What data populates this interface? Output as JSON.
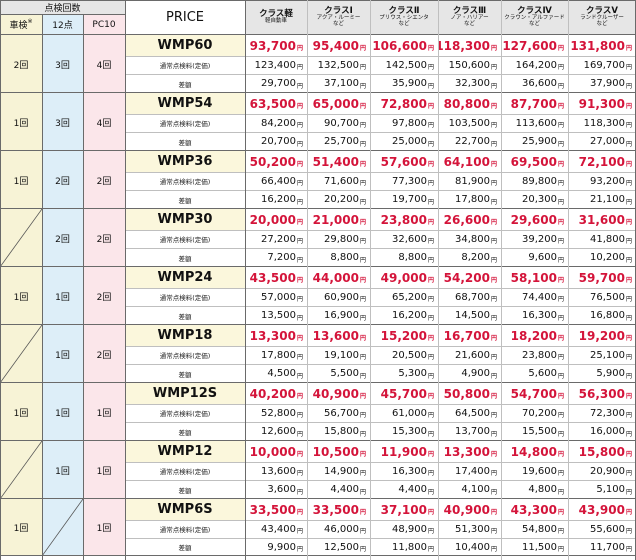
{
  "header": {
    "count_group": "点検回数",
    "col_shaken": "車検",
    "col_shaken_mark": "※",
    "col_12": "12点",
    "col_pc10": "PC10",
    "price": "PRICE",
    "classes": [
      {
        "name": "クラス軽",
        "sub1": "軽自動車",
        "sub2": ""
      },
      {
        "name": "クラスⅠ",
        "sub1": "アクア・ルーミー",
        "sub2": "など"
      },
      {
        "name": "クラスⅡ",
        "sub1": "プリウス・シエンタ",
        "sub2": "など"
      },
      {
        "name": "クラスⅢ",
        "sub1": "ノア・ハリアー",
        "sub2": "など"
      },
      {
        "name": "クラスⅣ",
        "sub1": "クラウン・アルファード",
        "sub2": "など"
      },
      {
        "name": "クラスⅤ",
        "sub1": "ランドクルーザー",
        "sub2": "など"
      }
    ]
  },
  "yen": "円",
  "row_labels": {
    "regular": "通常点検料(定価)",
    "diff": "差額"
  },
  "plans": [
    {
      "name": "WMP60",
      "shaken": "2回",
      "c12": "3回",
      "pc10": "4回",
      "price": [
        "93,700",
        "95,400",
        "106,600",
        "118,300",
        "127,600",
        "131,800"
      ],
      "regular": [
        "123,400",
        "132,500",
        "142,500",
        "150,600",
        "164,200",
        "169,700"
      ],
      "diff": [
        "29,700",
        "37,100",
        "35,900",
        "32,300",
        "36,600",
        "37,900"
      ]
    },
    {
      "name": "WMP54",
      "shaken": "1回",
      "c12": "3回",
      "pc10": "4回",
      "price": [
        "63,500",
        "65,000",
        "72,800",
        "80,800",
        "87,700",
        "91,300"
      ],
      "regular": [
        "84,200",
        "90,700",
        "97,800",
        "103,500",
        "113,600",
        "118,300"
      ],
      "diff": [
        "20,700",
        "25,700",
        "25,000",
        "22,700",
        "25,900",
        "27,000"
      ]
    },
    {
      "name": "WMP36",
      "shaken": "1回",
      "c12": "2回",
      "pc10": "2回",
      "price": [
        "50,200",
        "51,400",
        "57,600",
        "64,100",
        "69,500",
        "72,100"
      ],
      "regular": [
        "66,400",
        "71,600",
        "77,300",
        "81,900",
        "89,800",
        "93,200"
      ],
      "diff": [
        "16,200",
        "20,200",
        "19,700",
        "17,800",
        "20,300",
        "21,100"
      ]
    },
    {
      "name": "WMP30",
      "shaken": "",
      "c12": "2回",
      "pc10": "2回",
      "price": [
        "20,000",
        "21,000",
        "23,800",
        "26,600",
        "29,600",
        "31,600"
      ],
      "regular": [
        "27,200",
        "29,800",
        "32,600",
        "34,800",
        "39,200",
        "41,800"
      ],
      "diff": [
        "7,200",
        "8,800",
        "8,800",
        "8,200",
        "9,600",
        "10,200"
      ]
    },
    {
      "name": "WMP24",
      "shaken": "1回",
      "c12": "1回",
      "pc10": "2回",
      "price": [
        "43,500",
        "44,000",
        "49,000",
        "54,200",
        "58,100",
        "59,700"
      ],
      "regular": [
        "57,000",
        "60,900",
        "65,200",
        "68,700",
        "74,400",
        "76,500"
      ],
      "diff": [
        "13,500",
        "16,900",
        "16,200",
        "14,500",
        "16,300",
        "16,800"
      ]
    },
    {
      "name": "WMP18",
      "shaken": "",
      "c12": "1回",
      "pc10": "2回",
      "price": [
        "13,300",
        "13,600",
        "15,200",
        "16,700",
        "18,200",
        "19,200"
      ],
      "regular": [
        "17,800",
        "19,100",
        "20,500",
        "21,600",
        "23,800",
        "25,100"
      ],
      "diff": [
        "4,500",
        "5,500",
        "5,300",
        "4,900",
        "5,600",
        "5,900"
      ]
    },
    {
      "name": "WMP12S",
      "shaken": "1回",
      "c12": "1回",
      "pc10": "1回",
      "price": [
        "40,200",
        "40,900",
        "45,700",
        "50,800",
        "54,700",
        "56,300"
      ],
      "regular": [
        "52,800",
        "56,700",
        "61,000",
        "64,500",
        "70,200",
        "72,300"
      ],
      "diff": [
        "12,600",
        "15,800",
        "15,300",
        "13,700",
        "15,500",
        "16,000"
      ]
    },
    {
      "name": "WMP12",
      "shaken": "",
      "c12": "1回",
      "pc10": "1回",
      "price": [
        "10,000",
        "10,500",
        "11,900",
        "13,300",
        "14,800",
        "15,800"
      ],
      "regular": [
        "13,600",
        "14,900",
        "16,300",
        "17,400",
        "19,600",
        "20,900"
      ],
      "diff": [
        "3,600",
        "4,400",
        "4,400",
        "4,100",
        "4,800",
        "5,100"
      ]
    },
    {
      "name": "WMP6S",
      "shaken": "1回",
      "c12": "",
      "pc10": "1回",
      "price": [
        "33,500",
        "33,500",
        "37,100",
        "40,900",
        "43,300",
        "43,900"
      ],
      "regular": [
        "43,400",
        "46,000",
        "48,900",
        "51,300",
        "54,800",
        "55,600"
      ],
      "diff": [
        "9,900",
        "12,500",
        "11,800",
        "10,400",
        "11,500",
        "11,700"
      ]
    }
  ],
  "colors": {
    "red": "#d4143a",
    "shaken_bg": "#f7f3d6",
    "c12_bg": "#ddeef8",
    "pc10_bg": "#fbe6ea",
    "header_gray": "#e6e6e6",
    "plan_name_bg": "#fbf7dc",
    "section_line": "#6a6a6a",
    "grid_line": "#bfbfbf"
  }
}
